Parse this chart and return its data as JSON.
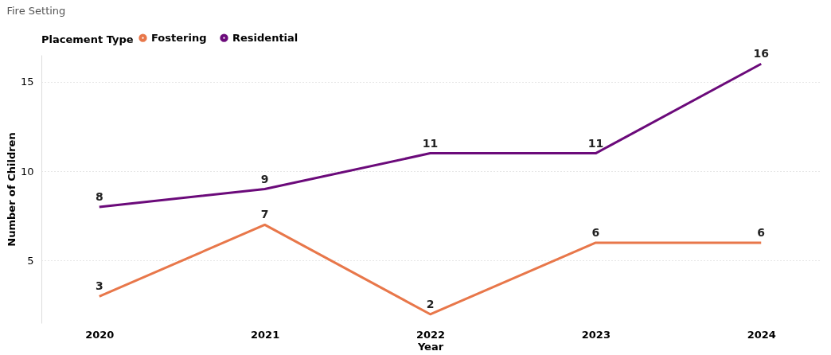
{
  "chart_data": {
    "type": "line",
    "title": "Fire Setting",
    "xlabel": "Year",
    "ylabel": "Number of Children",
    "legend_title": "Placement Type",
    "categories": [
      "2020",
      "2021",
      "2022",
      "2023",
      "2024"
    ],
    "series": [
      {
        "name": "Fostering",
        "color": "#e8774a",
        "values": [
          3,
          7,
          2,
          6,
          6
        ]
      },
      {
        "name": "Residential",
        "color": "#6b0a7a",
        "values": [
          8,
          9,
          11,
          11,
          16
        ]
      }
    ],
    "ylim": [
      1.5,
      16.5
    ],
    "yticks": [
      5,
      10,
      15
    ],
    "grid": "y",
    "legend": "top left",
    "data_labels": true,
    "marker": "none",
    "line_style": "solid"
  }
}
